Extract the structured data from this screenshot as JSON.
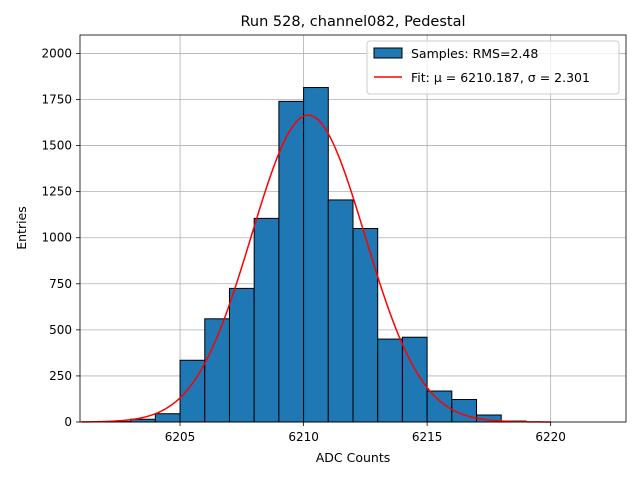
{
  "chart_data": {
    "type": "bar",
    "title": "Run 528, channel082, Pedestal",
    "xlabel": "ADC Counts",
    "ylabel": "Entries",
    "xlim": [
      6200.95,
      6223.05
    ],
    "ylim": [
      0,
      2100
    ],
    "xticks": [
      6205,
      6210,
      6215,
      6220
    ],
    "yticks": [
      0,
      250,
      500,
      750,
      1000,
      1250,
      1500,
      1750,
      2000
    ],
    "grid": true,
    "legend_position": "top-right",
    "histogram": {
      "label": "Samples: RMS=2.48",
      "color": "#1f77b4",
      "bin_edges": [
        6201,
        6202,
        6203,
        6204,
        6205,
        6206,
        6207,
        6208,
        6209,
        6210,
        6211,
        6212,
        6213,
        6214,
        6215,
        6216,
        6217,
        6218,
        6219,
        6220,
        6221,
        6222
      ],
      "counts": [
        0,
        3,
        15,
        45,
        335,
        560,
        725,
        1105,
        1740,
        1815,
        1205,
        1050,
        450,
        460,
        168,
        122,
        38,
        5,
        0,
        0,
        0
      ]
    },
    "fit": {
      "label": "Fit: μ = 6210.187, σ = 2.301",
      "color": "#ff0000",
      "mu": 6210.187,
      "sigma": 2.301,
      "amplitude": 1665,
      "x_range": [
        6201,
        6220
      ]
    }
  }
}
